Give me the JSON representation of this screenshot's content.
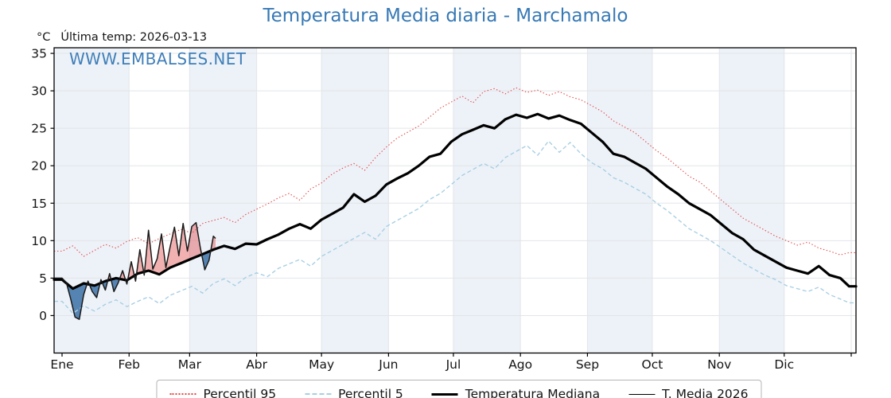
{
  "title": "Temperatura Media diaria - Marchamalo",
  "subtitle": {
    "units": "°C",
    "last_temp_label": "Última temp: 2026-03-13"
  },
  "watermark": "WWW.EMBALSES.NET",
  "colors": {
    "accent_blue": "#3779b5",
    "p95_red": "#e64545",
    "p5_cyan": "#a9cfe3",
    "median_black": "#000000",
    "t2026_black": "#1a1a1a",
    "fill_above": "rgba(225,70,70,0.42)",
    "fill_below": "rgba(35,95,155,0.75)",
    "month_band": "#edf2f8",
    "grid": "#e2e5e9",
    "axis": "#000000"
  },
  "legend": {
    "items": [
      {
        "label": "Percentil 95",
        "style": "red-dotted"
      },
      {
        "label": "Percentil 5",
        "style": "cyan-dashed"
      },
      {
        "label": "Temperatura Mediana",
        "style": "black-thick"
      },
      {
        "label": "T. Media 2026",
        "style": "black-thin"
      }
    ]
  },
  "chart_data": {
    "type": "line",
    "title": "Temperatura Media diaria - Marchamalo",
    "ylabel": "°C",
    "ylim": [
      -5,
      35.75
    ],
    "yticks": [
      0,
      5,
      10,
      15,
      20,
      25,
      30,
      35
    ],
    "x_unit": "day_of_year",
    "xtick_labels": [
      "Ene",
      "Feb",
      "Mar",
      "Abr",
      "May",
      "Jun",
      "Jul",
      "Ago",
      "Sep",
      "Oct",
      "Nov",
      "Dic"
    ],
    "month_start_days": [
      0,
      31,
      59,
      90,
      120,
      151,
      181,
      212,
      243,
      273,
      304,
      334,
      365
    ],
    "legend_position": "bottom",
    "grid": true,
    "days": [
      0,
      5,
      10,
      15,
      20,
      25,
      30,
      35,
      40,
      45,
      50,
      55,
      60,
      65,
      70,
      75,
      80,
      85,
      90,
      95,
      100,
      105,
      110,
      115,
      120,
      125,
      130,
      135,
      140,
      145,
      150,
      155,
      160,
      165,
      170,
      175,
      180,
      185,
      190,
      195,
      200,
      205,
      210,
      215,
      220,
      225,
      230,
      235,
      240,
      245,
      250,
      255,
      260,
      265,
      270,
      275,
      280,
      285,
      290,
      295,
      300,
      305,
      310,
      315,
      320,
      325,
      330,
      335,
      340,
      345,
      350,
      355,
      360,
      364
    ],
    "series": [
      {
        "name": "Percentil 95",
        "style": "red-dotted",
        "values": [
          8.6,
          9.3,
          7.9,
          8.7,
          9.5,
          9.0,
          9.9,
          10.4,
          9.6,
          10.3,
          10.9,
          11.5,
          11.0,
          12.3,
          12.7,
          13.1,
          12.4,
          13.5,
          14.2,
          14.9,
          15.7,
          16.3,
          15.4,
          16.9,
          17.7,
          18.9,
          19.7,
          20.3,
          19.4,
          21.1,
          22.5,
          23.7,
          24.5,
          25.3,
          26.5,
          27.7,
          28.5,
          29.3,
          28.4,
          29.9,
          30.3,
          29.6,
          30.4,
          29.8,
          30.1,
          29.4,
          29.9,
          29.2,
          28.8,
          28.0,
          27.2,
          26.0,
          25.2,
          24.4,
          23.2,
          22.0,
          21.0,
          19.8,
          18.6,
          17.8,
          16.6,
          15.4,
          14.2,
          13.0,
          12.2,
          11.4,
          10.6,
          10.0,
          9.4,
          9.8,
          9.0,
          8.6,
          8.1,
          8.4
        ]
      },
      {
        "name": "Percentil 5",
        "style": "cyan-dashed",
        "values": [
          1.9,
          0.3,
          1.3,
          0.6,
          1.5,
          2.1,
          1.2,
          1.9,
          2.5,
          1.6,
          2.7,
          3.3,
          3.9,
          3.0,
          4.3,
          4.9,
          4.0,
          5.1,
          5.7,
          5.2,
          6.3,
          6.9,
          7.5,
          6.6,
          7.9,
          8.7,
          9.5,
          10.3,
          11.1,
          10.2,
          11.9,
          12.7,
          13.5,
          14.3,
          15.5,
          16.3,
          17.5,
          18.7,
          19.5,
          20.3,
          19.6,
          21.1,
          21.9,
          22.7,
          21.4,
          23.3,
          21.8,
          23.1,
          21.6,
          20.4,
          19.6,
          18.4,
          17.8,
          17.0,
          16.2,
          15.0,
          14.0,
          12.8,
          11.6,
          10.8,
          10.0,
          9.0,
          8.0,
          7.0,
          6.2,
          5.4,
          4.8,
          4.0,
          3.6,
          3.2,
          3.8,
          2.8,
          2.2,
          1.7
        ]
      },
      {
        "name": "Temperatura Mediana",
        "style": "black-thick",
        "values": [
          4.8,
          3.6,
          4.3,
          4.0,
          4.6,
          5.0,
          4.7,
          5.6,
          6.0,
          5.5,
          6.4,
          7.0,
          7.6,
          8.2,
          8.8,
          9.3,
          8.9,
          9.6,
          9.5,
          10.2,
          10.8,
          11.6,
          12.2,
          11.6,
          12.8,
          13.6,
          14.4,
          16.2,
          15.2,
          16.0,
          17.5,
          18.3,
          19.0,
          20.0,
          21.2,
          21.6,
          23.2,
          24.2,
          24.8,
          25.4,
          25.0,
          26.2,
          26.8,
          26.4,
          26.9,
          26.3,
          26.7,
          26.1,
          25.6,
          24.4,
          23.2,
          21.6,
          21.2,
          20.4,
          19.6,
          18.4,
          17.2,
          16.2,
          15.0,
          14.2,
          13.4,
          12.2,
          11.0,
          10.2,
          8.8,
          8.0,
          7.2,
          6.4,
          6.0,
          5.6,
          6.6,
          5.4,
          5.0,
          3.9
        ]
      },
      {
        "name": "T. Media 2026",
        "style": "black-thin",
        "days": [
          0,
          2,
          4,
          6,
          8,
          10,
          12,
          14,
          16,
          18,
          20,
          22,
          24,
          26,
          28,
          30,
          32,
          34,
          36,
          38,
          40,
          42,
          44,
          46,
          48,
          50,
          52,
          54,
          56,
          58,
          60,
          62,
          64,
          66,
          68,
          70,
          71
        ],
        "values": [
          5.0,
          4.4,
          2.2,
          -0.2,
          -0.5,
          2.8,
          4.6,
          3.2,
          2.4,
          4.8,
          3.4,
          5.6,
          3.2,
          4.4,
          6.0,
          4.2,
          7.2,
          4.6,
          8.8,
          5.4,
          11.4,
          6.2,
          7.6,
          10.9,
          6.4,
          9.2,
          11.8,
          8.0,
          12.3,
          8.6,
          11.9,
          12.4,
          9.0,
          6.1,
          7.4,
          10.6,
          10.3
        ],
        "fill_above": "median",
        "fill_below": "median"
      }
    ]
  }
}
